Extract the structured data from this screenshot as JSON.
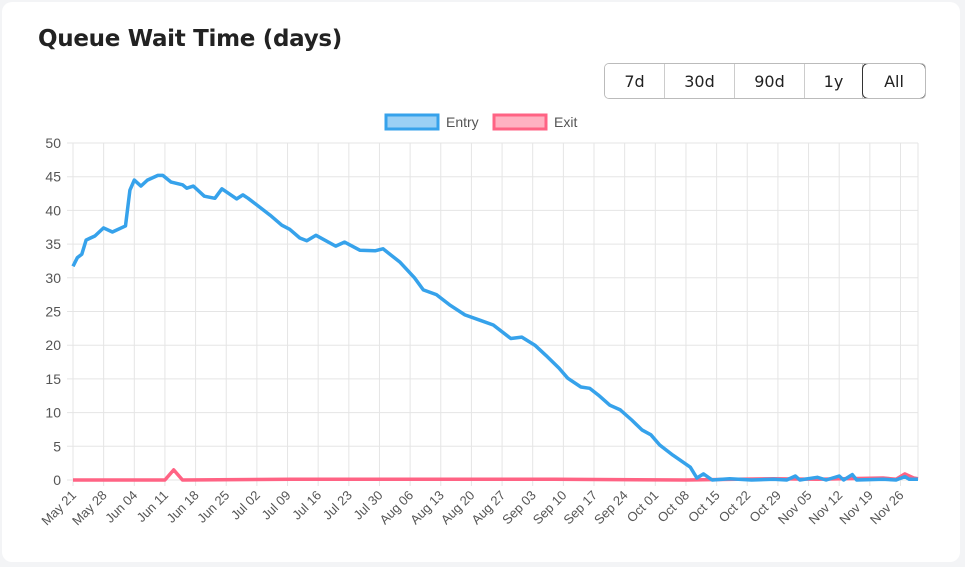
{
  "title": "Queue Wait Time (days)",
  "ranges": [
    {
      "label": "7d"
    },
    {
      "label": "30d"
    },
    {
      "label": "90d"
    },
    {
      "label": "1y"
    },
    {
      "label": "All",
      "active": true
    }
  ],
  "chart_data": {
    "type": "line",
    "title": "Queue Wait Time (days)",
    "xlabel": "",
    "ylabel": "",
    "x_unit": "days since May 21",
    "xlim": [
      0,
      193
    ],
    "ylim": [
      0,
      50
    ],
    "yticks": [
      0,
      5,
      10,
      15,
      20,
      25,
      30,
      35,
      40,
      45,
      50
    ],
    "xtick_labels": [
      "May 21",
      "May 28",
      "Jun 04",
      "Jun 11",
      "Jun 18",
      "Jun 25",
      "Jul 02",
      "Jul 09",
      "Jul 16",
      "Jul 23",
      "Jul 30",
      "Aug 06",
      "Aug 13",
      "Aug 20",
      "Aug 27",
      "Sep 03",
      "Sep 10",
      "Sep 17",
      "Sep 24",
      "Oct 01",
      "Oct 08",
      "Oct 15",
      "Oct 22",
      "Oct 29",
      "Nov 05",
      "Nov 12",
      "Nov 19",
      "Nov 26"
    ],
    "grid": true,
    "legend": "top-center",
    "series": [
      {
        "name": "Entry",
        "color": "#36a2eb",
        "fill": "#9ad0f5",
        "points": [
          [
            0,
            31.7
          ],
          [
            1,
            33
          ],
          [
            2,
            33.5
          ],
          [
            3,
            35.6
          ],
          [
            4,
            35.9
          ],
          [
            5,
            36.2
          ],
          [
            7,
            37.4
          ],
          [
            9,
            36.8
          ],
          [
            11,
            37.4
          ],
          [
            12,
            37.7
          ],
          [
            13,
            43
          ],
          [
            14,
            44.5
          ],
          [
            15.5,
            43.6
          ],
          [
            17,
            44.5
          ],
          [
            19.4,
            45.2
          ],
          [
            20.5,
            45.2
          ],
          [
            22.4,
            44.2
          ],
          [
            25,
            43.8
          ],
          [
            26,
            43.3
          ],
          [
            27.5,
            43.6
          ],
          [
            30,
            42.1
          ],
          [
            32.4,
            41.8
          ],
          [
            34,
            43.2
          ],
          [
            37.4,
            41.7
          ],
          [
            38.8,
            42.3
          ],
          [
            40,
            41.8
          ],
          [
            42,
            40.8
          ],
          [
            45,
            39.3
          ],
          [
            47.7,
            37.8
          ],
          [
            49.5,
            37.2
          ],
          [
            51.8,
            35.9
          ],
          [
            53.4,
            35.5
          ],
          [
            55.5,
            36.3
          ],
          [
            60,
            34.7
          ],
          [
            62,
            35.3
          ],
          [
            65.5,
            34.1
          ],
          [
            69,
            34
          ],
          [
            70.8,
            34.3
          ],
          [
            74.7,
            32.3
          ],
          [
            78,
            30
          ],
          [
            80,
            28.2
          ],
          [
            83,
            27.5
          ],
          [
            86,
            26
          ],
          [
            89.5,
            24.5
          ],
          [
            93,
            23.7
          ],
          [
            96,
            23
          ],
          [
            100,
            21
          ],
          [
            102.5,
            21.2
          ],
          [
            105.5,
            20
          ],
          [
            108,
            18.5
          ],
          [
            111,
            16.6
          ],
          [
            113,
            15.1
          ],
          [
            116,
            13.8
          ],
          [
            118,
            13.6
          ],
          [
            120,
            12.6
          ],
          [
            122.6,
            11.1
          ],
          [
            125,
            10.4
          ],
          [
            127.6,
            8.9
          ],
          [
            130,
            7.4
          ],
          [
            132,
            6.7
          ],
          [
            134,
            5.2
          ],
          [
            137,
            3.7
          ],
          [
            141,
            1.9
          ],
          [
            142.5,
            0.3
          ],
          [
            144,
            0.9
          ],
          [
            146,
            0
          ],
          [
            150,
            0.2
          ],
          [
            155,
            0
          ],
          [
            160,
            0.1
          ],
          [
            163,
            0
          ],
          [
            165,
            0.6
          ],
          [
            166,
            0
          ],
          [
            170,
            0.4
          ],
          [
            172,
            0
          ],
          [
            175,
            0.6
          ],
          [
            176,
            0
          ],
          [
            178,
            0.8
          ],
          [
            179,
            0
          ],
          [
            185,
            0.1
          ],
          [
            188,
            0
          ],
          [
            190,
            0.5
          ],
          [
            191,
            0.1
          ],
          [
            193,
            0.1
          ]
        ]
      },
      {
        "name": "Exit",
        "color": "#ff6384",
        "fill": "#ffb1c1",
        "points": [
          [
            0,
            0
          ],
          [
            21,
            0
          ],
          [
            23,
            1.5
          ],
          [
            25,
            0
          ],
          [
            50,
            0.1
          ],
          [
            80,
            0.1
          ],
          [
            110,
            0.1
          ],
          [
            140,
            0
          ],
          [
            160,
            0.2
          ],
          [
            170,
            0.1
          ],
          [
            185,
            0.3
          ],
          [
            188,
            0.1
          ],
          [
            190,
            0.9
          ],
          [
            192,
            0.3
          ],
          [
            193,
            0.2
          ]
        ]
      }
    ]
  }
}
